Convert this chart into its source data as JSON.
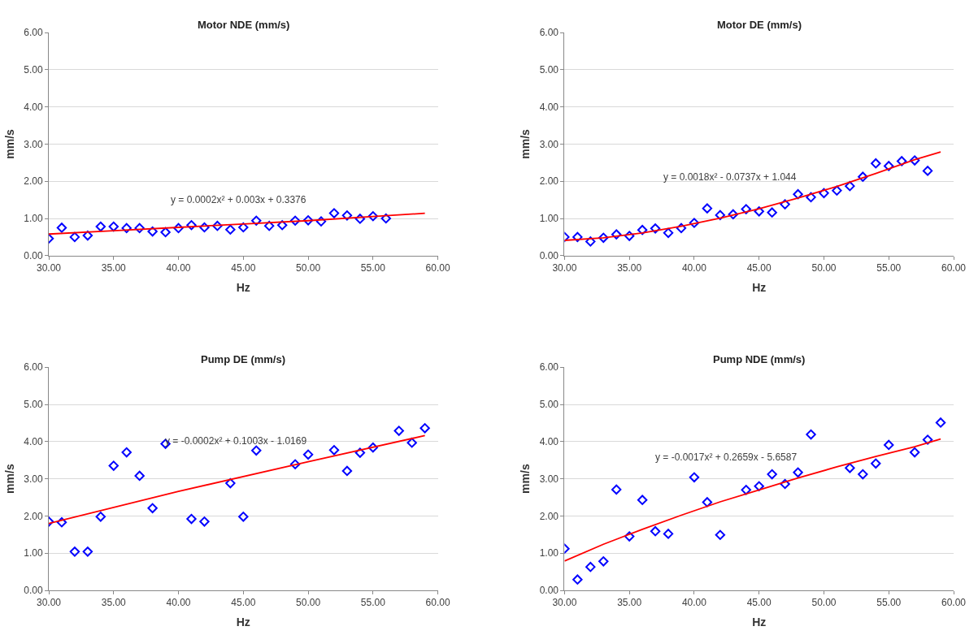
{
  "chart_data": [
    {
      "type": "scatter",
      "title": "Motor NDE (mm/s)",
      "xlabel": "Hz",
      "ylabel": "mm/s",
      "marker": "diamond",
      "grid": "y",
      "xlim": [
        30,
        60
      ],
      "xticks": [
        {
          "value": 30,
          "label": "30.00"
        },
        {
          "value": 35,
          "label": "35.00"
        },
        {
          "value": 40,
          "label": "40.00"
        },
        {
          "value": 45,
          "label": "45.00"
        },
        {
          "value": 50,
          "label": "50.00"
        },
        {
          "value": 55,
          "label": "55.00"
        },
        {
          "value": 60,
          "label": "60.00"
        }
      ],
      "ylim": [
        0,
        6
      ],
      "yticks": [
        {
          "value": 0,
          "label": "0.00"
        },
        {
          "value": 1,
          "label": "1.00"
        },
        {
          "value": 2,
          "label": "2.00"
        },
        {
          "value": 3,
          "label": "3.00"
        },
        {
          "value": 4,
          "label": "4.00"
        },
        {
          "value": 5,
          "label": "5.00"
        },
        {
          "value": 6,
          "label": "6.00"
        }
      ],
      "series": [
        {
          "color": "#0000ff",
          "x": [
            30,
            31,
            32,
            33,
            34,
            35,
            36,
            37,
            38,
            39,
            40,
            41,
            42,
            43,
            44,
            45,
            46,
            47,
            48,
            49,
            50,
            51,
            52,
            53,
            54,
            55,
            56
          ],
          "values": [
            0.46,
            0.75,
            0.5,
            0.54,
            0.78,
            0.78,
            0.74,
            0.74,
            0.65,
            0.63,
            0.74,
            0.82,
            0.76,
            0.8,
            0.7,
            0.76,
            0.94,
            0.8,
            0.82,
            0.94,
            0.95,
            0.92,
            1.14,
            1.08,
            0.99,
            1.06,
            1.0
          ]
        },
        {
          "type": "line",
          "marker": "none",
          "color": "#ff0000",
          "x": [
            30,
            35,
            40,
            45,
            50,
            55,
            59
          ],
          "values": [
            0.58,
            0.67,
            0.76,
            0.85,
            0.94,
            1.05,
            1.14
          ]
        }
      ],
      "annotations": [
        "y = 0.0002x² + 0.003x + 0.3376"
      ]
    },
    {
      "type": "scatter",
      "title": "Motor DE (mm/s)",
      "xlabel": "Hz",
      "ylabel": "mm/s",
      "marker": "diamond",
      "grid": "y",
      "xlim": [
        30,
        60
      ],
      "xticks": [
        {
          "value": 30,
          "label": "30.00"
        },
        {
          "value": 35,
          "label": "35.00"
        },
        {
          "value": 40,
          "label": "40.00"
        },
        {
          "value": 45,
          "label": "45.00"
        },
        {
          "value": 50,
          "label": "50.00"
        },
        {
          "value": 55,
          "label": "55.00"
        },
        {
          "value": 60,
          "label": "60.00"
        }
      ],
      "ylim": [
        0,
        6
      ],
      "yticks": [
        {
          "value": 0,
          "label": "0.00"
        },
        {
          "value": 1,
          "label": "1.00"
        },
        {
          "value": 2,
          "label": "2.00"
        },
        {
          "value": 3,
          "label": "3.00"
        },
        {
          "value": 4,
          "label": "4.00"
        },
        {
          "value": 5,
          "label": "5.00"
        },
        {
          "value": 6,
          "label": "6.00"
        }
      ],
      "series": [
        {
          "color": "#0000ff",
          "x": [
            30,
            31,
            32,
            33,
            34,
            35,
            36,
            37,
            38,
            39,
            40,
            41,
            42,
            43,
            44,
            45,
            46,
            47,
            48,
            49,
            50,
            51,
            52,
            53,
            54,
            55,
            56,
            57,
            58
          ],
          "values": [
            0.5,
            0.5,
            0.38,
            0.48,
            0.57,
            0.53,
            0.69,
            0.73,
            0.61,
            0.74,
            0.88,
            1.27,
            1.09,
            1.11,
            1.25,
            1.19,
            1.16,
            1.38,
            1.65,
            1.57,
            1.68,
            1.75,
            1.87,
            2.12,
            2.48,
            2.41,
            2.54,
            2.56,
            2.28
          ]
        },
        {
          "type": "line",
          "marker": "none",
          "color": "#ff0000",
          "x": [
            30,
            33,
            36,
            39,
            42,
            45,
            48,
            51,
            54,
            57,
            59
          ],
          "values": [
            0.41,
            0.48,
            0.61,
            0.79,
            1.01,
            1.26,
            1.55,
            1.86,
            2.21,
            2.58,
            2.79
          ]
        }
      ],
      "annotations": [
        "y = 0.0018x² - 0.0737x + 1.044"
      ]
    },
    {
      "type": "scatter",
      "title": "Pump DE (mm/s)",
      "xlabel": "Hz",
      "ylabel": "mm/s",
      "marker": "diamond",
      "grid": "y",
      "xlim": [
        30,
        60
      ],
      "xticks": [
        {
          "value": 30,
          "label": "30.00"
        },
        {
          "value": 35,
          "label": "35.00"
        },
        {
          "value": 40,
          "label": "40.00"
        },
        {
          "value": 45,
          "label": "45.00"
        },
        {
          "value": 50,
          "label": "50.00"
        },
        {
          "value": 55,
          "label": "55.00"
        },
        {
          "value": 60,
          "label": "60.00"
        }
      ],
      "ylim": [
        0,
        6
      ],
      "yticks": [
        {
          "value": 0,
          "label": "0.00"
        },
        {
          "value": 1,
          "label": "1.00"
        },
        {
          "value": 2,
          "label": "2.00"
        },
        {
          "value": 3,
          "label": "3.00"
        },
        {
          "value": 4,
          "label": "4.00"
        },
        {
          "value": 5,
          "label": "5.00"
        },
        {
          "value": 6,
          "label": "6.00"
        }
      ],
      "series": [
        {
          "color": "#0000ff",
          "x": [
            30,
            31,
            32,
            33,
            34,
            35,
            36,
            37,
            38,
            39,
            41,
            42,
            44,
            45,
            46,
            49,
            50,
            52,
            53,
            54,
            55,
            57,
            58,
            59
          ],
          "values": [
            1.85,
            1.83,
            1.04,
            1.04,
            1.98,
            3.35,
            3.71,
            3.08,
            2.21,
            3.94,
            1.92,
            1.85,
            2.88,
            1.98,
            3.76,
            3.39,
            3.65,
            3.77,
            3.21,
            3.7,
            3.84,
            4.29,
            3.97,
            4.36
          ]
        },
        {
          "type": "line",
          "marker": "none",
          "color": "#ff0000",
          "x": [
            30,
            40,
            50,
            59
          ],
          "values": [
            1.8,
            2.66,
            3.46,
            4.16
          ]
        }
      ],
      "annotations": [
        "y = -0.0002x² + 0.1003x - 1.0169"
      ]
    },
    {
      "type": "scatter",
      "title": "Pump NDE (mm/s)",
      "xlabel": "Hz",
      "ylabel": "mm/s",
      "marker": "diamond",
      "grid": "y",
      "xlim": [
        30,
        60
      ],
      "xticks": [
        {
          "value": 30,
          "label": "30.00"
        },
        {
          "value": 35,
          "label": "35.00"
        },
        {
          "value": 40,
          "label": "40.00"
        },
        {
          "value": 45,
          "label": "45.00"
        },
        {
          "value": 50,
          "label": "50.00"
        },
        {
          "value": 55,
          "label": "55.00"
        },
        {
          "value": 60,
          "label": "60.00"
        }
      ],
      "ylim": [
        0,
        6
      ],
      "yticks": [
        {
          "value": 0,
          "label": "0.00"
        },
        {
          "value": 1,
          "label": "1.00"
        },
        {
          "value": 2,
          "label": "2.00"
        },
        {
          "value": 3,
          "label": "3.00"
        },
        {
          "value": 4,
          "label": "4.00"
        },
        {
          "value": 5,
          "label": "5.00"
        },
        {
          "value": 6,
          "label": "6.00"
        }
      ],
      "series": [
        {
          "color": "#0000ff",
          "x": [
            30,
            31,
            32,
            33,
            34,
            35,
            36,
            37,
            38,
            40,
            41,
            42,
            44,
            45,
            46,
            47,
            48,
            49,
            52,
            53,
            54,
            55,
            57,
            58,
            59
          ],
          "values": [
            1.12,
            0.29,
            0.63,
            0.78,
            2.71,
            1.45,
            2.43,
            1.59,
            1.52,
            3.04,
            2.37,
            1.49,
            2.7,
            2.8,
            3.12,
            2.86,
            3.17,
            4.19,
            3.29,
            3.12,
            3.41,
            3.91,
            3.71,
            4.05,
            4.51
          ]
        },
        {
          "type": "line",
          "marker": "none",
          "color": "#ff0000",
          "x": [
            30,
            33,
            36,
            39,
            42,
            45,
            48,
            51,
            54,
            57,
            59
          ],
          "values": [
            0.79,
            1.24,
            1.64,
            2.02,
            2.38,
            2.7,
            3.02,
            3.32,
            3.6,
            3.86,
            4.07
          ]
        }
      ],
      "annotations": [
        "y = -0.0017x² + 0.2659x - 5.6587"
      ]
    }
  ]
}
